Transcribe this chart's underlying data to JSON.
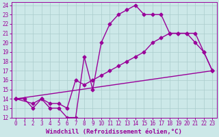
{
  "background_color": "#cce8e8",
  "grid_color": "#aacccc",
  "line_color": "#990099",
  "xlim": [
    -0.5,
    23.5
  ],
  "ylim": [
    12,
    24.3
  ],
  "yticks": [
    12,
    13,
    14,
    15,
    16,
    17,
    18,
    19,
    20,
    21,
    22,
    23,
    24
  ],
  "xticks": [
    0,
    1,
    2,
    3,
    4,
    5,
    6,
    7,
    8,
    9,
    10,
    11,
    12,
    13,
    14,
    15,
    16,
    17,
    18,
    19,
    20,
    21,
    22,
    23
  ],
  "xlabel": "Windchill (Refroidissement éolien,°C)",
  "series1_x": [
    0,
    1,
    2,
    3,
    4,
    5,
    6,
    7,
    8,
    9,
    10,
    11,
    12,
    13,
    14,
    15,
    16,
    17,
    18,
    19,
    20,
    21,
    22,
    23
  ],
  "series1_y": [
    14,
    14,
    13,
    14,
    13,
    13,
    12,
    12,
    18.5,
    15,
    20,
    22,
    23,
    23.5,
    24,
    23,
    23,
    23,
    21,
    21,
    21,
    20,
    19,
    17
  ],
  "series2_x": [
    0,
    2,
    3,
    4,
    5,
    6,
    7,
    8,
    9,
    10,
    11,
    12,
    13,
    14,
    15,
    16,
    17,
    18,
    19,
    20,
    21,
    22,
    23
  ],
  "series2_y": [
    14,
    13.5,
    14,
    13.5,
    13.5,
    13,
    16,
    15.5,
    16,
    16.5,
    17,
    17.5,
    18,
    18.5,
    19,
    20,
    20.5,
    21,
    21,
    21,
    21,
    19,
    17
  ],
  "series3_x": [
    0,
    23
  ],
  "series3_y": [
    14,
    17
  ],
  "marker": "D",
  "markersize": 2.5,
  "linewidth": 1.0,
  "tick_fontsize": 5.5,
  "xlabel_fontsize": 6.5
}
